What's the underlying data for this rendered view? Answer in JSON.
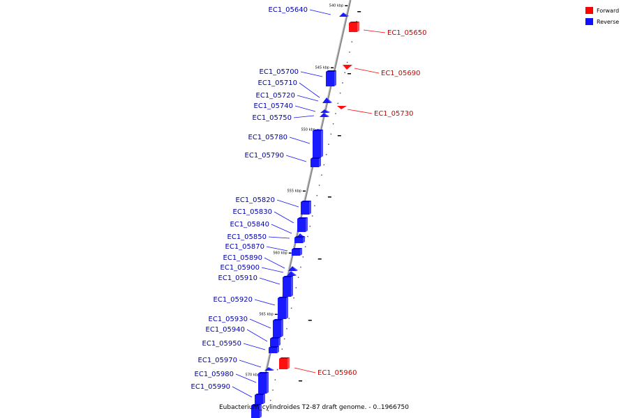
{
  "caption": "Eubacterium_cylindroides T2-87 draft genome. - 0..1966750",
  "legend": [
    {
      "label": "Forward",
      "color": "#ff0000"
    },
    {
      "label": "Reverse",
      "color": "#1010ff"
    }
  ],
  "ruler_labels": [
    "540 kbp",
    "545 kbp",
    "550 kbp",
    "555 kbp",
    "560 kbp",
    "565 kbp",
    "570 kbp"
  ],
  "genes": [
    {
      "id": "EC1_05640",
      "strand": "reverse"
    },
    {
      "id": "EC1_05650",
      "strand": "forward"
    },
    {
      "id": "EC1_05690",
      "strand": "forward"
    },
    {
      "id": "EC1_05700",
      "strand": "reverse"
    },
    {
      "id": "EC1_05710",
      "strand": "reverse"
    },
    {
      "id": "EC1_05720",
      "strand": "reverse"
    },
    {
      "id": "EC1_05730",
      "strand": "forward"
    },
    {
      "id": "EC1_05740",
      "strand": "reverse"
    },
    {
      "id": "EC1_05750",
      "strand": "reverse"
    },
    {
      "id": "EC1_05780",
      "strand": "reverse"
    },
    {
      "id": "EC1_05790",
      "strand": "reverse"
    },
    {
      "id": "EC1_05820",
      "strand": "reverse"
    },
    {
      "id": "EC1_05830",
      "strand": "reverse"
    },
    {
      "id": "EC1_05840",
      "strand": "reverse"
    },
    {
      "id": "EC1_05850",
      "strand": "reverse"
    },
    {
      "id": "EC1_05870",
      "strand": "reverse"
    },
    {
      "id": "EC1_05890",
      "strand": "reverse"
    },
    {
      "id": "EC1_05900",
      "strand": "reverse"
    },
    {
      "id": "EC1_05910",
      "strand": "reverse"
    },
    {
      "id": "EC1_05920",
      "strand": "reverse"
    },
    {
      "id": "EC1_05930",
      "strand": "reverse"
    },
    {
      "id": "EC1_05940",
      "strand": "reverse"
    },
    {
      "id": "EC1_05950",
      "strand": "reverse"
    },
    {
      "id": "EC1_05960",
      "strand": "forward"
    },
    {
      "id": "EC1_05970",
      "strand": "reverse"
    },
    {
      "id": "EC1_05980",
      "strand": "reverse"
    },
    {
      "id": "EC1_05990",
      "strand": "reverse"
    }
  ]
}
